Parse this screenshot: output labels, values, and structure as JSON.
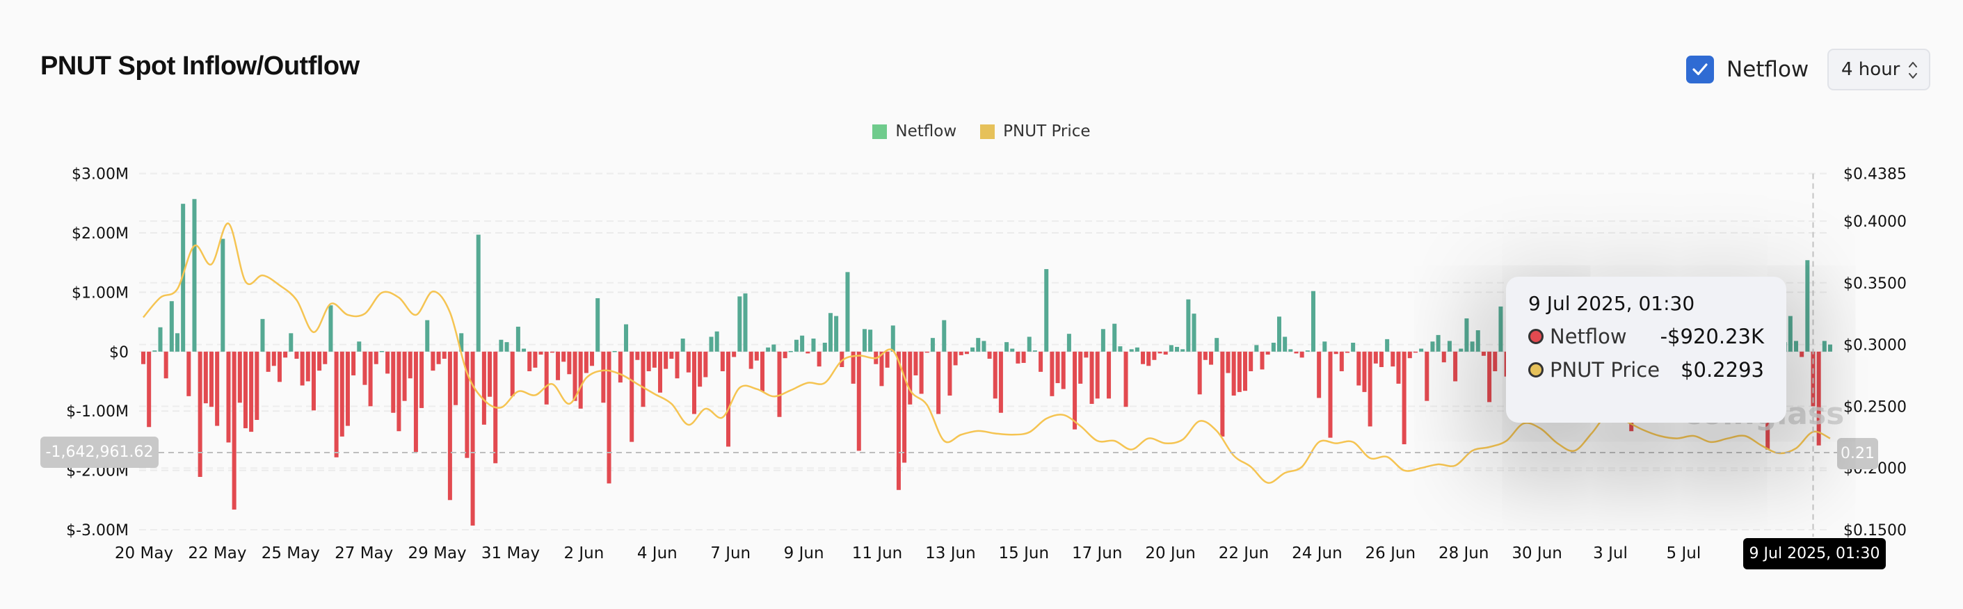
{
  "header": {
    "title": "PNUT Spot Inflow/Outflow",
    "netflow_toggle": {
      "label": "Netflow",
      "checked": true,
      "icon": "checkmark-icon"
    },
    "interval_select": {
      "value": "4 hour",
      "icon": "updown-chevron-icon"
    }
  },
  "watermark": "coinglass",
  "colors": {
    "inflow": "#55a993",
    "outflow": "#e24a50",
    "price": "#f5c452",
    "legend_netflow": "#6fcb8c",
    "legend_price": "#e6c15a",
    "accent": "#2f6bd3"
  },
  "crosshair": {
    "left_value": "-1,642,961.62",
    "right_value": "0.21",
    "x_label": "9 Jul 2025, 01:30"
  },
  "tooltip": {
    "date": "9 Jul 2025, 01:30",
    "rows": [
      {
        "label": "Netflow",
        "value": "-$920.23K",
        "dot": "#e24a50"
      },
      {
        "label": "PNUT Price",
        "value": "$0.2293",
        "dot": "#e6c15a"
      }
    ]
  },
  "chart_data": {
    "type": "bar+line",
    "interval": "4 hour",
    "legend": [
      "Netflow",
      "PNUT Price"
    ],
    "legend_position": "top-center",
    "grid": true,
    "hovered_index": 294,
    "x_ticks": [
      "20 May",
      "22 May",
      "25 May",
      "27 May",
      "29 May",
      "31 May",
      "2 Jun",
      "4 Jun",
      "7 Jun",
      "9 Jun",
      "11 Jun",
      "13 Jun",
      "15 Jun",
      "17 Jun",
      "20 Jun",
      "22 Jun",
      "24 Jun",
      "26 Jun",
      "28 Jun",
      "30 Jun",
      "3 Jul",
      "5 Jul"
    ],
    "y_left": {
      "ticks": [
        "$3.00M",
        "$2.00M",
        "$1.00M",
        "$0",
        "$-1.00M",
        "$-2.00M",
        "$-3.00M"
      ],
      "values": [
        3,
        2,
        1,
        0,
        -1,
        -2,
        -3
      ],
      "range": [
        -3,
        3
      ],
      "unit": "USD millions"
    },
    "y_right": {
      "ticks": [
        "$0.4385",
        "$0.4000",
        "$0.3500",
        "$0.3000",
        "$0.2500",
        "$0.2000",
        "$0.1500"
      ],
      "values": [
        0.4385,
        0.4,
        0.35,
        0.3,
        0.25,
        0.2,
        0.15
      ],
      "range": [
        0.15,
        0.4385
      ]
    },
    "netflow": {
      "name": "Netflow",
      "values": [
        -0.21,
        -1.27,
        0.02,
        0.41,
        -0.45,
        0.85,
        0.31,
        2.49,
        -0.75,
        2.57,
        -2.11,
        -0.87,
        -0.93,
        -1.25,
        1.9,
        -1.53,
        -2.66,
        -0.86,
        -1.29,
        -1.35,
        -1.15,
        0.55,
        -0.34,
        -0.24,
        -0.51,
        -0.1,
        0.31,
        -0.12,
        -0.57,
        -0.5,
        -0.99,
        -0.32,
        -0.21,
        0.78,
        -1.78,
        -1.43,
        -1.25,
        -0.4,
        0.17,
        -0.56,
        -0.92,
        -0.21,
        0.01,
        -0.37,
        -1.03,
        -1.34,
        -0.83,
        -0.45,
        -1.69,
        -0.95,
        0.53,
        -0.32,
        -0.21,
        -0.12,
        -2.5,
        -0.9,
        0.31,
        -1.79,
        -2.93,
        1.97,
        -1.23,
        -0.76,
        -1.88,
        0.2,
        0.16,
        -0.75,
        0.42,
        0.05,
        -0.33,
        -0.27,
        -0.05,
        -0.89,
        -0.01,
        -0.48,
        -0.17,
        -0.38,
        -0.83,
        -0.96,
        -0.36,
        -0.24,
        0.9,
        -0.86,
        -2.22,
        0.01,
        -0.52,
        0.46,
        -1.52,
        -0.14,
        -0.93,
        -0.33,
        -0.27,
        -0.69,
        -0.29,
        -0.12,
        -0.45,
        0.22,
        -0.35,
        -1.05,
        -0.59,
        -0.43,
        0.25,
        0.34,
        -0.33,
        -1.6,
        -0.09,
        0.93,
        0.98,
        -0.29,
        -0.15,
        -0.67,
        0.07,
        0.12,
        -1.1,
        -0.11,
        0.01,
        0.2,
        0.27,
        -0.03,
        0.22,
        -0.25,
        0.15,
        0.65,
        0.6,
        -0.26,
        1.34,
        -0.54,
        -1.67,
        0.38,
        0.37,
        -0.21,
        -0.58,
        -0.27,
        0.44,
        -2.33,
        -1.87,
        -0.89,
        -0.4,
        -0.71,
        -0.01,
        0.23,
        -1.05,
        0.53,
        -0.74,
        -0.23,
        -0.06,
        -0.04,
        0.07,
        0.23,
        0.18,
        -0.12,
        -0.79,
        -1.03,
        0.16,
        0.05,
        -0.2,
        -0.19,
        0.25,
        0.02,
        -0.34,
        1.39,
        -0.75,
        -0.53,
        -0.63,
        0.3,
        -1.31,
        -0.54,
        -0.1,
        -0.88,
        -0.79,
        0.38,
        -0.79,
        0.47,
        0.09,
        -0.93,
        0.04,
        0.07,
        -0.21,
        -0.24,
        -0.14,
        -0.03,
        -0.05,
        0.11,
        0.08,
        0.04,
        0.88,
        0.64,
        -0.72,
        -0.14,
        -0.22,
        0.23,
        -1.43,
        -0.36,
        -0.74,
        -0.68,
        -0.66,
        -0.33,
        0.11,
        -0.3,
        -0.05,
        0.15,
        0.59,
        0.25,
        0.04,
        -0.03,
        -0.1,
        0.02,
        1.02,
        -0.78,
        0.17,
        -1.45,
        -0.04,
        -0.33,
        -0.02,
        0.15,
        -0.57,
        -0.68,
        -1.26,
        -0.2,
        -0.26,
        0.21,
        -0.25,
        -0.54,
        -1.56,
        -0.11,
        -0.01,
        0.05,
        -0.83,
        0.17,
        0.28,
        -0.18,
        0.18,
        -0.5,
        0.05,
        0.56,
        0.17,
        0.36,
        -0.07,
        -0.85,
        -0.33,
        0.76,
        -0.42,
        -0.1,
        0.12,
        -0.35,
        0.22,
        -0.6,
        0.45,
        -0.18,
        0.3,
        -0.85,
        0.08,
        -0.42,
        0.65,
        -0.25,
        0.18,
        -0.55,
        0.1,
        -0.3,
        0.4,
        -0.7,
        0.05,
        -0.2,
        -1.34,
        0.15,
        -0.38,
        0.28,
        -0.12,
        0.5,
        -0.65,
        0.09,
        -0.22,
        0.35,
        -0.48,
        0.14,
        -0.3,
        0.62,
        -0.16,
        0.25,
        -0.75,
        0.07,
        -0.4,
        0.33,
        -0.2,
        0.48,
        -0.58,
        0.11,
        -1.65,
        0.2,
        -0.28,
        0.16,
        0.6,
        0.18,
        -0.09,
        1.54,
        -0.92023,
        -1.58,
        0.18,
        0.12
      ]
    },
    "price": {
      "name": "PNUT Price",
      "sampled_every_n_bars": 3,
      "values": [
        0.322,
        0.338,
        0.345,
        0.38,
        0.365,
        0.398,
        0.351,
        0.356,
        0.348,
        0.336,
        0.31,
        0.333,
        0.324,
        0.325,
        0.342,
        0.338,
        0.324,
        0.343,
        0.326,
        0.277,
        0.255,
        0.249,
        0.262,
        0.259,
        0.268,
        0.252,
        0.273,
        0.279,
        0.276,
        0.268,
        0.26,
        0.252,
        0.235,
        0.248,
        0.241,
        0.265,
        0.264,
        0.258,
        0.263,
        0.269,
        0.269,
        0.287,
        0.291,
        0.289,
        0.295,
        0.263,
        0.251,
        0.222,
        0.227,
        0.23,
        0.228,
        0.227,
        0.229,
        0.24,
        0.243,
        0.234,
        0.222,
        0.222,
        0.215,
        0.224,
        0.22,
        0.223,
        0.238,
        0.23,
        0.21,
        0.201,
        0.188,
        0.196,
        0.201,
        0.221,
        0.22,
        0.221,
        0.208,
        0.209,
        0.198,
        0.2,
        0.203,
        0.202,
        0.214,
        0.217,
        0.222,
        0.236,
        0.232,
        0.22,
        0.214,
        0.228,
        0.244,
        0.238,
        0.231,
        0.226,
        0.224,
        0.226,
        0.221,
        0.224,
        0.226,
        0.218,
        0.212,
        0.216,
        0.2293,
        0.224
      ]
    }
  }
}
